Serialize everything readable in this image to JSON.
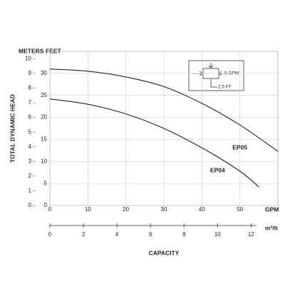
{
  "chart_data": {
    "type": "line",
    "x_label": "GPM",
    "x2_label": "m³/h",
    "axis_title_x": "CAPACITY",
    "axis_title_y": "TOTAL DYNAMIC HEAD",
    "y_label": "FEET",
    "y2_label": "METERS",
    "x": [
      0,
      10,
      20,
      30,
      40,
      50,
      60
    ],
    "series": [
      {
        "name": "EP05",
        "color": "#222222",
        "values": [
          31,
          30.5,
          29.2,
          27,
          23.2,
          18.3,
          12.3
        ]
      },
      {
        "name": "EP04",
        "color": "#222222",
        "values": [
          24.2,
          23,
          20.8,
          17.5,
          13.1,
          7.8,
          null
        ]
      }
    ],
    "series_extra": {
      "EP04_end": {
        "x": 55,
        "value": 4.2
      }
    },
    "xlim": [
      0,
      60
    ],
    "xticks": [
      0,
      10,
      20,
      30,
      40,
      50
    ],
    "x2lim": [
      0,
      13.6
    ],
    "x2ticks": [
      0,
      2,
      4,
      6,
      8,
      10,
      12
    ],
    "ylim": [
      0,
      35
    ],
    "yticks": [
      0,
      5,
      10,
      15,
      20,
      25,
      30
    ],
    "y2lim": [
      0,
      10.5
    ],
    "y2ticks": [
      0,
      1,
      2,
      3,
      4,
      5,
      6,
      7,
      8,
      9,
      10
    ],
    "grid": true,
    "inset": {
      "flow_label": "5 GPM",
      "height_label": "2.5 FT"
    }
  }
}
